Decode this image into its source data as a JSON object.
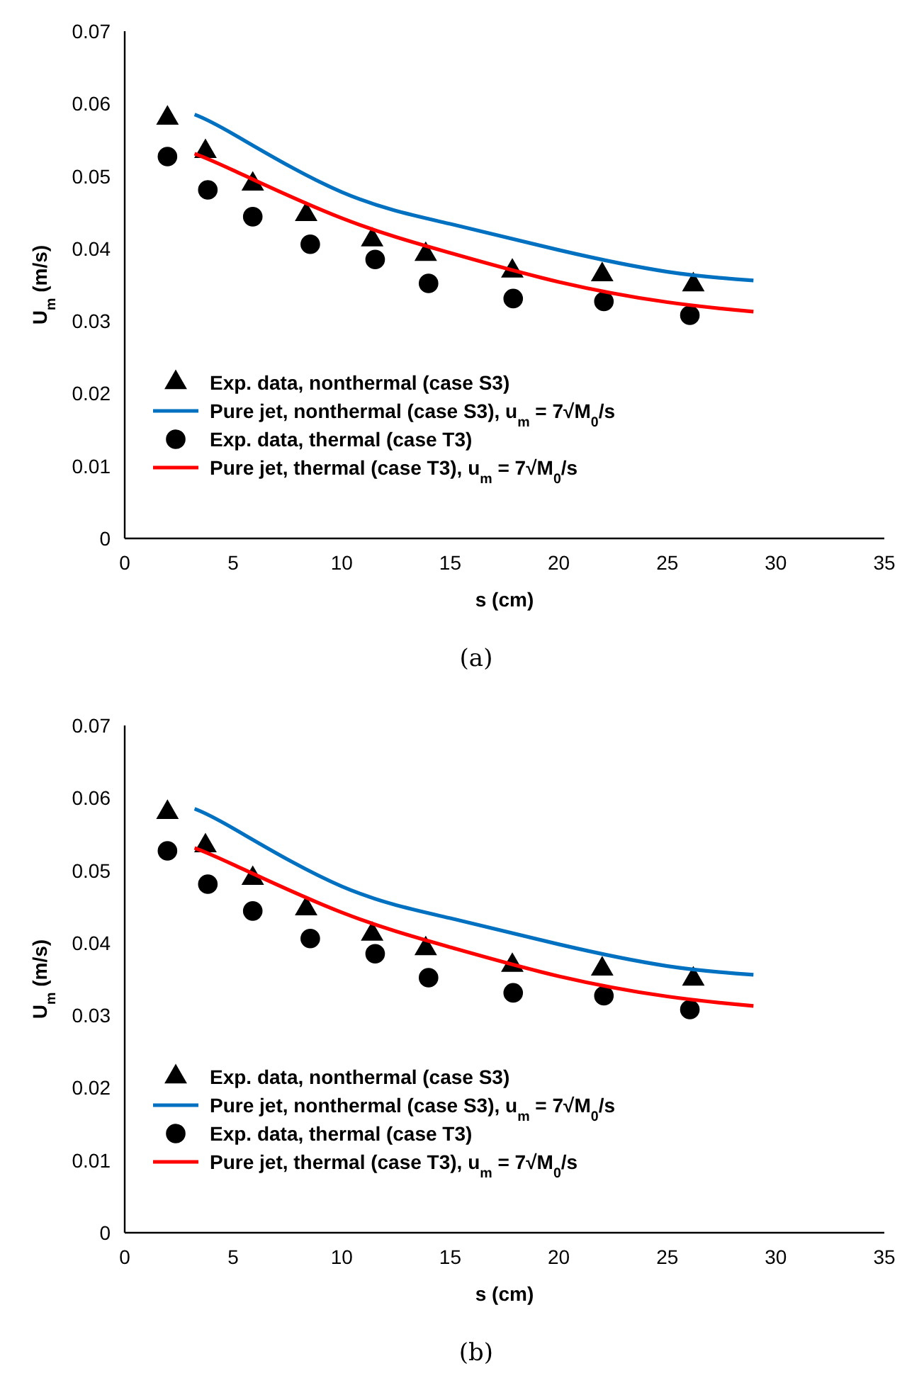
{
  "chart_data": [
    {
      "type": "scatter",
      "xlabel": "s (cm)",
      "ylabel": "U$_{m}$ (m/s)",
      "xlim": [
        0,
        35
      ],
      "xticks": [
        0,
        5,
        10,
        15,
        20,
        25,
        30,
        35
      ],
      "ylim": [
        0,
        0.07
      ],
      "yticks": [
        0,
        0.01,
        0.02,
        0.03,
        0.04,
        0.05,
        0.06,
        0.07
      ],
      "legend": "bottom left",
      "annotations": [
        "(a)"
      ],
      "series": [
        {
          "name": "Exp. data, nonthermal (case S3)",
          "marker": "triangle",
          "color": "#000000",
          "x": [
            1.97,
            3.72,
            5.9,
            8.36,
            11.4,
            13.87,
            17.86,
            22.0,
            26.2
          ],
          "values": [
            0.058,
            0.0534,
            0.0489,
            0.0447,
            0.0412,
            0.0392,
            0.0369,
            0.0364,
            0.035
          ]
        },
        {
          "name": "Pure jet, nonthermal (case S3), u$_{m}$ = 7√M$_{0}$/s",
          "type": "line",
          "color": "#0070c0",
          "x": [
            3.22,
            5,
            10,
            15,
            20,
            25,
            28.97
          ],
          "values": [
            0.0585,
            0.0558,
            0.0478,
            0.0434,
            0.0398,
            0.0368,
            0.0356
          ]
        },
        {
          "name": "Exp. data, thermal (case T3)",
          "marker": "circle",
          "color": "#000000",
          "x": [
            1.97,
            3.83,
            5.9,
            8.55,
            11.54,
            14.0,
            17.9,
            22.08,
            26.04
          ],
          "values": [
            0.0527,
            0.0481,
            0.0444,
            0.0406,
            0.0385,
            0.0352,
            0.0331,
            0.0327,
            0.0308
          ]
        },
        {
          "name": "Pure jet, thermal (case T3), u$_{m}$ = 7√M$_{0}$/s",
          "type": "line",
          "color": "#ff0000",
          "x": [
            3.22,
            5,
            10,
            15,
            20,
            25,
            28.97
          ],
          "values": [
            0.0531,
            0.0508,
            0.0442,
            0.0394,
            0.0354,
            0.0326,
            0.0313
          ]
        }
      ]
    },
    {
      "type": "scatter",
      "xlabel": "s (cm)",
      "ylabel": "U$_{m}$ (m/s)",
      "xlim": [
        0,
        35
      ],
      "xticks": [
        0,
        5,
        10,
        15,
        20,
        25,
        30,
        35
      ],
      "ylim": [
        0,
        0.07
      ],
      "yticks": [
        0,
        0.01,
        0.02,
        0.03,
        0.04,
        0.05,
        0.06,
        0.07
      ],
      "legend": "bottom left",
      "annotations": [
        "(b)"
      ],
      "series": [
        {
          "name": "Exp. data, nonthermal (case S3)",
          "marker": "triangle",
          "color": "#000000",
          "x": [
            1.97,
            3.72,
            5.9,
            8.36,
            11.4,
            13.87,
            17.86,
            22.0,
            26.2
          ],
          "values": [
            0.058,
            0.0534,
            0.0489,
            0.0447,
            0.0412,
            0.0392,
            0.0369,
            0.0364,
            0.035
          ]
        },
        {
          "name": "Pure jet, nonthermal (case S3), u$_{m}$ = 7√M$_{0}$/s",
          "type": "line",
          "color": "#0070c0",
          "x": [
            3.22,
            5,
            10,
            15,
            20,
            25,
            28.97
          ],
          "values": [
            0.0585,
            0.0558,
            0.0478,
            0.0434,
            0.0398,
            0.0368,
            0.0356
          ]
        },
        {
          "name": "Exp. data, thermal (case T3)",
          "marker": "circle",
          "color": "#000000",
          "x": [
            1.97,
            3.83,
            5.9,
            8.55,
            11.54,
            14.0,
            17.9,
            22.08,
            26.04
          ],
          "values": [
            0.0527,
            0.0481,
            0.0444,
            0.0406,
            0.0385,
            0.0352,
            0.0331,
            0.0327,
            0.0308
          ]
        },
        {
          "name": "Pure jet, thermal (case T3), u$_{m}$ = 7√M$_{0}$/s",
          "type": "line",
          "color": "#ff0000",
          "x": [
            3.22,
            5,
            10,
            15,
            20,
            25,
            28.97
          ],
          "values": [
            0.0531,
            0.0508,
            0.0442,
            0.0394,
            0.0354,
            0.0326,
            0.0313
          ]
        }
      ]
    }
  ]
}
